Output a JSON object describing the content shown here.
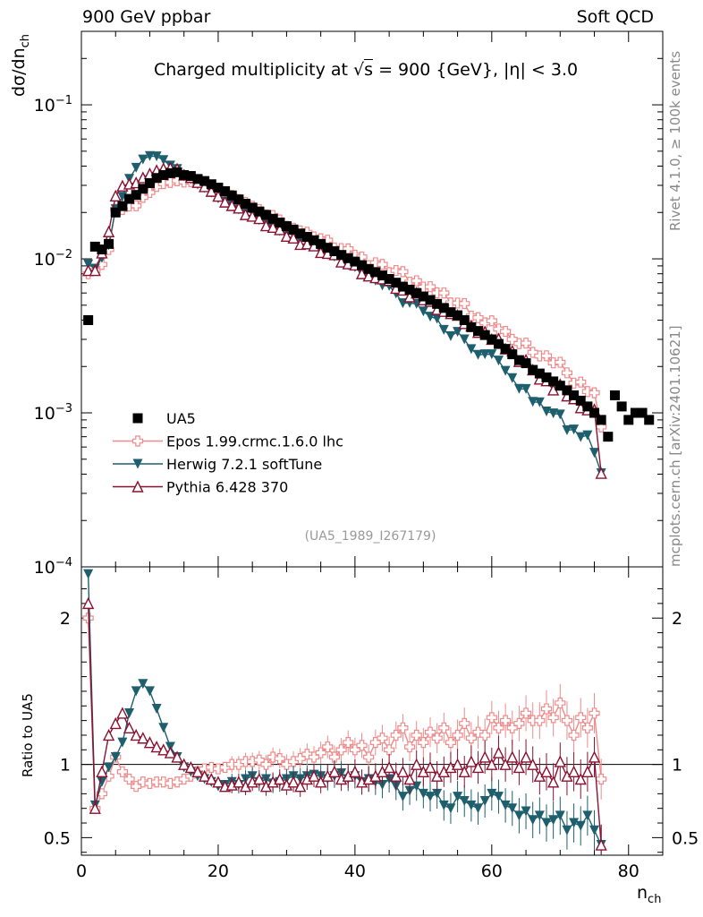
{
  "header": {
    "left": "900 GeV ppbar",
    "right": "Soft QCD"
  },
  "side_labels": {
    "rivet": "Rivet 4.1.0, ≥ 100k events",
    "mcplots": "mcplots.cern.ch [arXiv:2401.10621]"
  },
  "chart_data": {
    "type": "line",
    "title": "Charged multiplicity at √s = 900 {GeV}, |η| < 3.0",
    "title_prefix": "Charged multiplicity at ",
    "title_sqrt": "s",
    "title_suffix": " = 900 {GeV}, |η| < 3.0",
    "analysis_tag": "(UA5_1989_I267179)",
    "xlabel": "n",
    "xlabel_sub": "ch",
    "ylabel_main": "dσ/dn",
    "ylabel_sub": "ch",
    "ratio_ylabel": "Ratio to UA5",
    "xlim": [
      0,
      85
    ],
    "ylim": [
      0.0001,
      0.3
    ],
    "ratio_ylim": [
      0.38,
      2.35
    ],
    "log_y": true,
    "x_ticks": [
      0,
      20,
      40,
      60,
      80
    ],
    "y_tick_labels": [
      {
        "value": 0.1,
        "base": "10",
        "exp": "−1"
      },
      {
        "value": 0.01,
        "base": "10",
        "exp": "−2"
      },
      {
        "value": 0.001,
        "base": "10",
        "exp": "−3"
      },
      {
        "value": 0.0001,
        "base": "10",
        "exp": "−4"
      }
    ],
    "ratio_ticks": [
      {
        "value": 0.5,
        "label": "0.5"
      },
      {
        "value": 1,
        "label": "1"
      },
      {
        "value": 2,
        "label": "2"
      }
    ],
    "legend_position": "lower-left",
    "series": [
      {
        "name": "UA5",
        "color": "#000000",
        "marker": "square",
        "line": false,
        "x": [
          1,
          2,
          3,
          4,
          5,
          6,
          7,
          8,
          9,
          10,
          11,
          12,
          13,
          14,
          15,
          16,
          17,
          18,
          19,
          20,
          21,
          22,
          23,
          24,
          25,
          26,
          27,
          28,
          29,
          30,
          31,
          32,
          33,
          34,
          35,
          36,
          37,
          38,
          39,
          40,
          41,
          42,
          43,
          44,
          45,
          46,
          47,
          48,
          49,
          50,
          51,
          52,
          53,
          54,
          55,
          56,
          57,
          58,
          59,
          60,
          61,
          62,
          63,
          64,
          65,
          66,
          67,
          68,
          69,
          70,
          71,
          72,
          73,
          74,
          75,
          76,
          77,
          78,
          79,
          80,
          81,
          82,
          83
        ],
        "values": [
          0.004,
          0.012,
          0.0115,
          0.0125,
          0.02,
          0.022,
          0.0245,
          0.026,
          0.0285,
          0.031,
          0.0335,
          0.035,
          0.036,
          0.0365,
          0.035,
          0.0345,
          0.033,
          0.032,
          0.0305,
          0.029,
          0.0275,
          0.0258,
          0.0243,
          0.0228,
          0.0215,
          0.0203,
          0.0193,
          0.0182,
          0.0172,
          0.0163,
          0.0155,
          0.0146,
          0.0139,
          0.0132,
          0.0125,
          0.0118,
          0.0112,
          0.0106,
          0.0101,
          0.0096,
          0.0091,
          0.0086,
          0.0082,
          0.0078,
          0.0074,
          0.007,
          0.0066,
          0.0063,
          0.006,
          0.0057,
          0.0054,
          0.0051,
          0.0048,
          0.0045,
          0.0043,
          0.004,
          0.0036,
          0.0034,
          0.0032,
          0.003,
          0.0028,
          0.0026,
          0.0024,
          0.0022,
          0.0021,
          0.0019,
          0.0018,
          0.0017,
          0.0016,
          0.0015,
          0.0014,
          0.0013,
          0.0012,
          0.0011,
          0.001,
          0.0009,
          0.0007,
          0.0013,
          0.0011,
          0.0009,
          0.001,
          0.001,
          0.0009
        ]
      },
      {
        "name": "Epos 1.99.crmc.1.6.0 lhc",
        "color": "#f08a8a",
        "marker": "cross",
        "line": true,
        "ratio": [
          2.0,
          0.7,
          0.8,
          0.92,
          1.05,
          0.95,
          0.9,
          0.85,
          0.88,
          0.87,
          0.88,
          0.88,
          0.87,
          0.88,
          0.9,
          0.92,
          0.95,
          0.97,
          0.98,
          0.97,
          0.98,
          1.0,
          1.0,
          1.02,
          1.02,
          1.03,
          1.0,
          1.05,
          1.04,
          1.0,
          1.02,
          1.04,
          1.07,
          1.05,
          1.08,
          1.12,
          1.05,
          1.1,
          1.15,
          1.1,
          1.13,
          1.05,
          1.15,
          1.18,
          1.1,
          1.2,
          1.25,
          1.12,
          1.2,
          1.15,
          1.22,
          1.18,
          1.25,
          1.15,
          1.2,
          1.28,
          1.18,
          1.22,
          1.2,
          1.32,
          1.25,
          1.3,
          1.25,
          1.28,
          1.35,
          1.3,
          1.3,
          1.38,
          1.32,
          1.42,
          1.3,
          1.2,
          1.32,
          1.25,
          1.35,
          0.9
        ]
      },
      {
        "name": "Herwig 7.2.1 softTune",
        "color": "#1e5f6e",
        "marker": "triangle-down",
        "line": true,
        "ratio": [
          2.3,
          0.72,
          0.88,
          0.98,
          1.05,
          1.15,
          1.35,
          1.5,
          1.55,
          1.5,
          1.38,
          1.25,
          1.12,
          1.05,
          0.98,
          0.95,
          0.92,
          0.9,
          0.88,
          0.85,
          0.86,
          0.88,
          0.86,
          0.9,
          0.92,
          0.88,
          0.9,
          0.87,
          0.88,
          0.9,
          0.92,
          0.9,
          0.92,
          0.93,
          0.92,
          0.9,
          0.92,
          0.94,
          0.9,
          0.92,
          0.88,
          0.9,
          0.88,
          0.86,
          0.9,
          0.85,
          0.78,
          0.82,
          0.85,
          0.8,
          0.78,
          0.8,
          0.72,
          0.7,
          0.78,
          0.75,
          0.72,
          0.7,
          0.75,
          0.8,
          0.78,
          0.72,
          0.7,
          0.65,
          0.68,
          0.62,
          0.65,
          0.6,
          0.62,
          0.65,
          0.55,
          0.6,
          0.58,
          0.65,
          0.55,
          0.45
        ]
      },
      {
        "name": "Pythia 6.428 370",
        "color": "#8a1230",
        "marker": "triangle-up",
        "line": true,
        "ratio": [
          2.1,
          0.7,
          0.95,
          1.2,
          1.28,
          1.35,
          1.25,
          1.2,
          1.18,
          1.15,
          1.12,
          1.1,
          1.08,
          1.05,
          1.0,
          0.98,
          0.95,
          0.92,
          0.9,
          0.88,
          0.85,
          0.86,
          0.88,
          0.85,
          0.88,
          0.9,
          0.85,
          0.88,
          0.9,
          0.86,
          0.88,
          0.85,
          0.9,
          0.92,
          0.88,
          0.92,
          0.95,
          0.9,
          0.92,
          0.95,
          0.88,
          0.9,
          0.92,
          0.95,
          0.98,
          0.92,
          0.95,
          0.9,
          1.0,
          0.95,
          0.98,
          0.92,
          0.95,
          0.98,
          1.0,
          0.95,
          1.02,
          0.98,
          1.05,
          1.0,
          1.08,
          1.0,
          1.05,
          0.98,
          1.05,
          1.0,
          0.92,
          0.95,
          0.88,
          1.02,
          0.92,
          0.95,
          0.9,
          0.95,
          1.05,
          0.45
        ]
      }
    ]
  }
}
